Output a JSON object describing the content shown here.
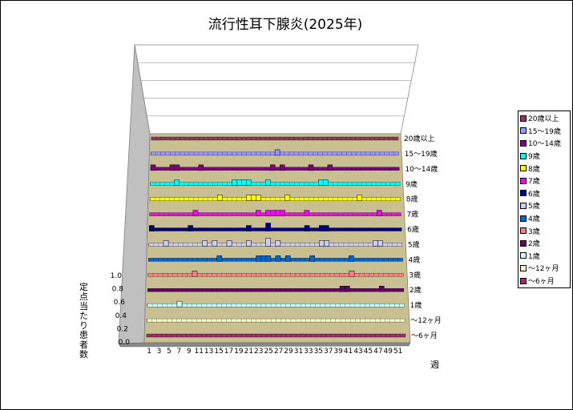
{
  "chart_data": {
    "type": "bar",
    "title": "流行性耳下腺炎(2025年)",
    "xlabel": "週",
    "ylabel": "定点当たり患者数",
    "ylim": [
      0,
      1.0
    ],
    "yticks": [
      "0.0",
      "0.2",
      "0.4",
      "0.6",
      "0.8",
      "1.0"
    ],
    "xticks": [
      "1",
      "3",
      "5",
      "7",
      "9",
      "11",
      "13",
      "15",
      "17",
      "19",
      "21",
      "23",
      "25",
      "27",
      "29",
      "31",
      "33",
      "35",
      "37",
      "39",
      "41",
      "43",
      "45",
      "47",
      "49",
      "51"
    ],
    "weeks": 52,
    "legend_position": "right",
    "grid": true,
    "series": [
      {
        "name": "～6ヶ月",
        "color": "#993366",
        "values": []
      },
      {
        "name": "～12ヶ月",
        "color": "#ffffcc",
        "values": []
      },
      {
        "name": "1歳",
        "color": "#ccffff",
        "values": [
          [
            7,
            0.05
          ]
        ]
      },
      {
        "name": "2歳",
        "color": "#660066",
        "values": [
          [
            40,
            0.05
          ],
          [
            41,
            0.05
          ],
          [
            48,
            0.05
          ]
        ]
      },
      {
        "name": "3歳",
        "color": "#ff8080",
        "values": [
          [
            10,
            0.05
          ],
          [
            42,
            0.05
          ]
        ]
      },
      {
        "name": "4歳",
        "color": "#0066cc",
        "values": [
          [
            15,
            0.05
          ],
          [
            23,
            0.05
          ],
          [
            24,
            0.05
          ],
          [
            25,
            0.05
          ],
          [
            27,
            0.05
          ],
          [
            29,
            0.05
          ],
          [
            34,
            0.05
          ],
          [
            42,
            0.05
          ]
        ]
      },
      {
        "name": "5歳",
        "color": "#ccccff",
        "values": [
          [
            4,
            0.05
          ],
          [
            12,
            0.05
          ],
          [
            14,
            0.05
          ],
          [
            17,
            0.05
          ],
          [
            21,
            0.05
          ],
          [
            25,
            0.1
          ],
          [
            27,
            0.05
          ],
          [
            36,
            0.05
          ],
          [
            37,
            0.05
          ],
          [
            47,
            0.05
          ],
          [
            48,
            0.05
          ]
        ]
      },
      {
        "name": "6歳",
        "color": "#000080",
        "values": [
          [
            1,
            0.05
          ],
          [
            9,
            0.05
          ],
          [
            21,
            0.05
          ],
          [
            25,
            0.1
          ],
          [
            33,
            0.05
          ],
          [
            36,
            0.05
          ],
          [
            37,
            0.05
          ]
        ]
      },
      {
        "name": "7歳",
        "color": "#ff00ff",
        "values": [
          [
            10,
            0.05
          ],
          [
            23,
            0.05
          ],
          [
            25,
            0.05
          ],
          [
            26,
            0.05
          ],
          [
            27,
            0.05
          ],
          [
            28,
            0.05
          ],
          [
            33,
            0.05
          ],
          [
            48,
            0.05
          ]
        ]
      },
      {
        "name": "8歳",
        "color": "#ffff00",
        "values": [
          [
            15,
            0.05
          ],
          [
            21,
            0.05
          ],
          [
            22,
            0.05
          ],
          [
            23,
            0.05
          ],
          [
            29,
            0.05
          ],
          [
            44,
            0.05
          ]
        ]
      },
      {
        "name": "9歳",
        "color": "#00ffff",
        "values": [
          [
            6,
            0.05
          ],
          [
            18,
            0.05
          ],
          [
            19,
            0.05
          ],
          [
            20,
            0.05
          ],
          [
            21,
            0.05
          ],
          [
            25,
            0.05
          ],
          [
            36,
            0.05
          ],
          [
            37,
            0.05
          ]
        ]
      },
      {
        "name": "10～14歳",
        "color": "#800080",
        "values": [
          [
            1,
            0.05
          ],
          [
            5,
            0.05
          ],
          [
            6,
            0.05
          ],
          [
            11,
            0.05
          ],
          [
            26,
            0.05
          ],
          [
            28,
            0.05
          ],
          [
            34,
            0.05
          ],
          [
            38,
            0.05
          ]
        ]
      },
      {
        "name": "15～19歳",
        "color": "#9999ff",
        "values": [
          [
            27,
            0.05
          ]
        ]
      },
      {
        "name": "20歳以上",
        "color": "#993366",
        "values": []
      }
    ]
  }
}
